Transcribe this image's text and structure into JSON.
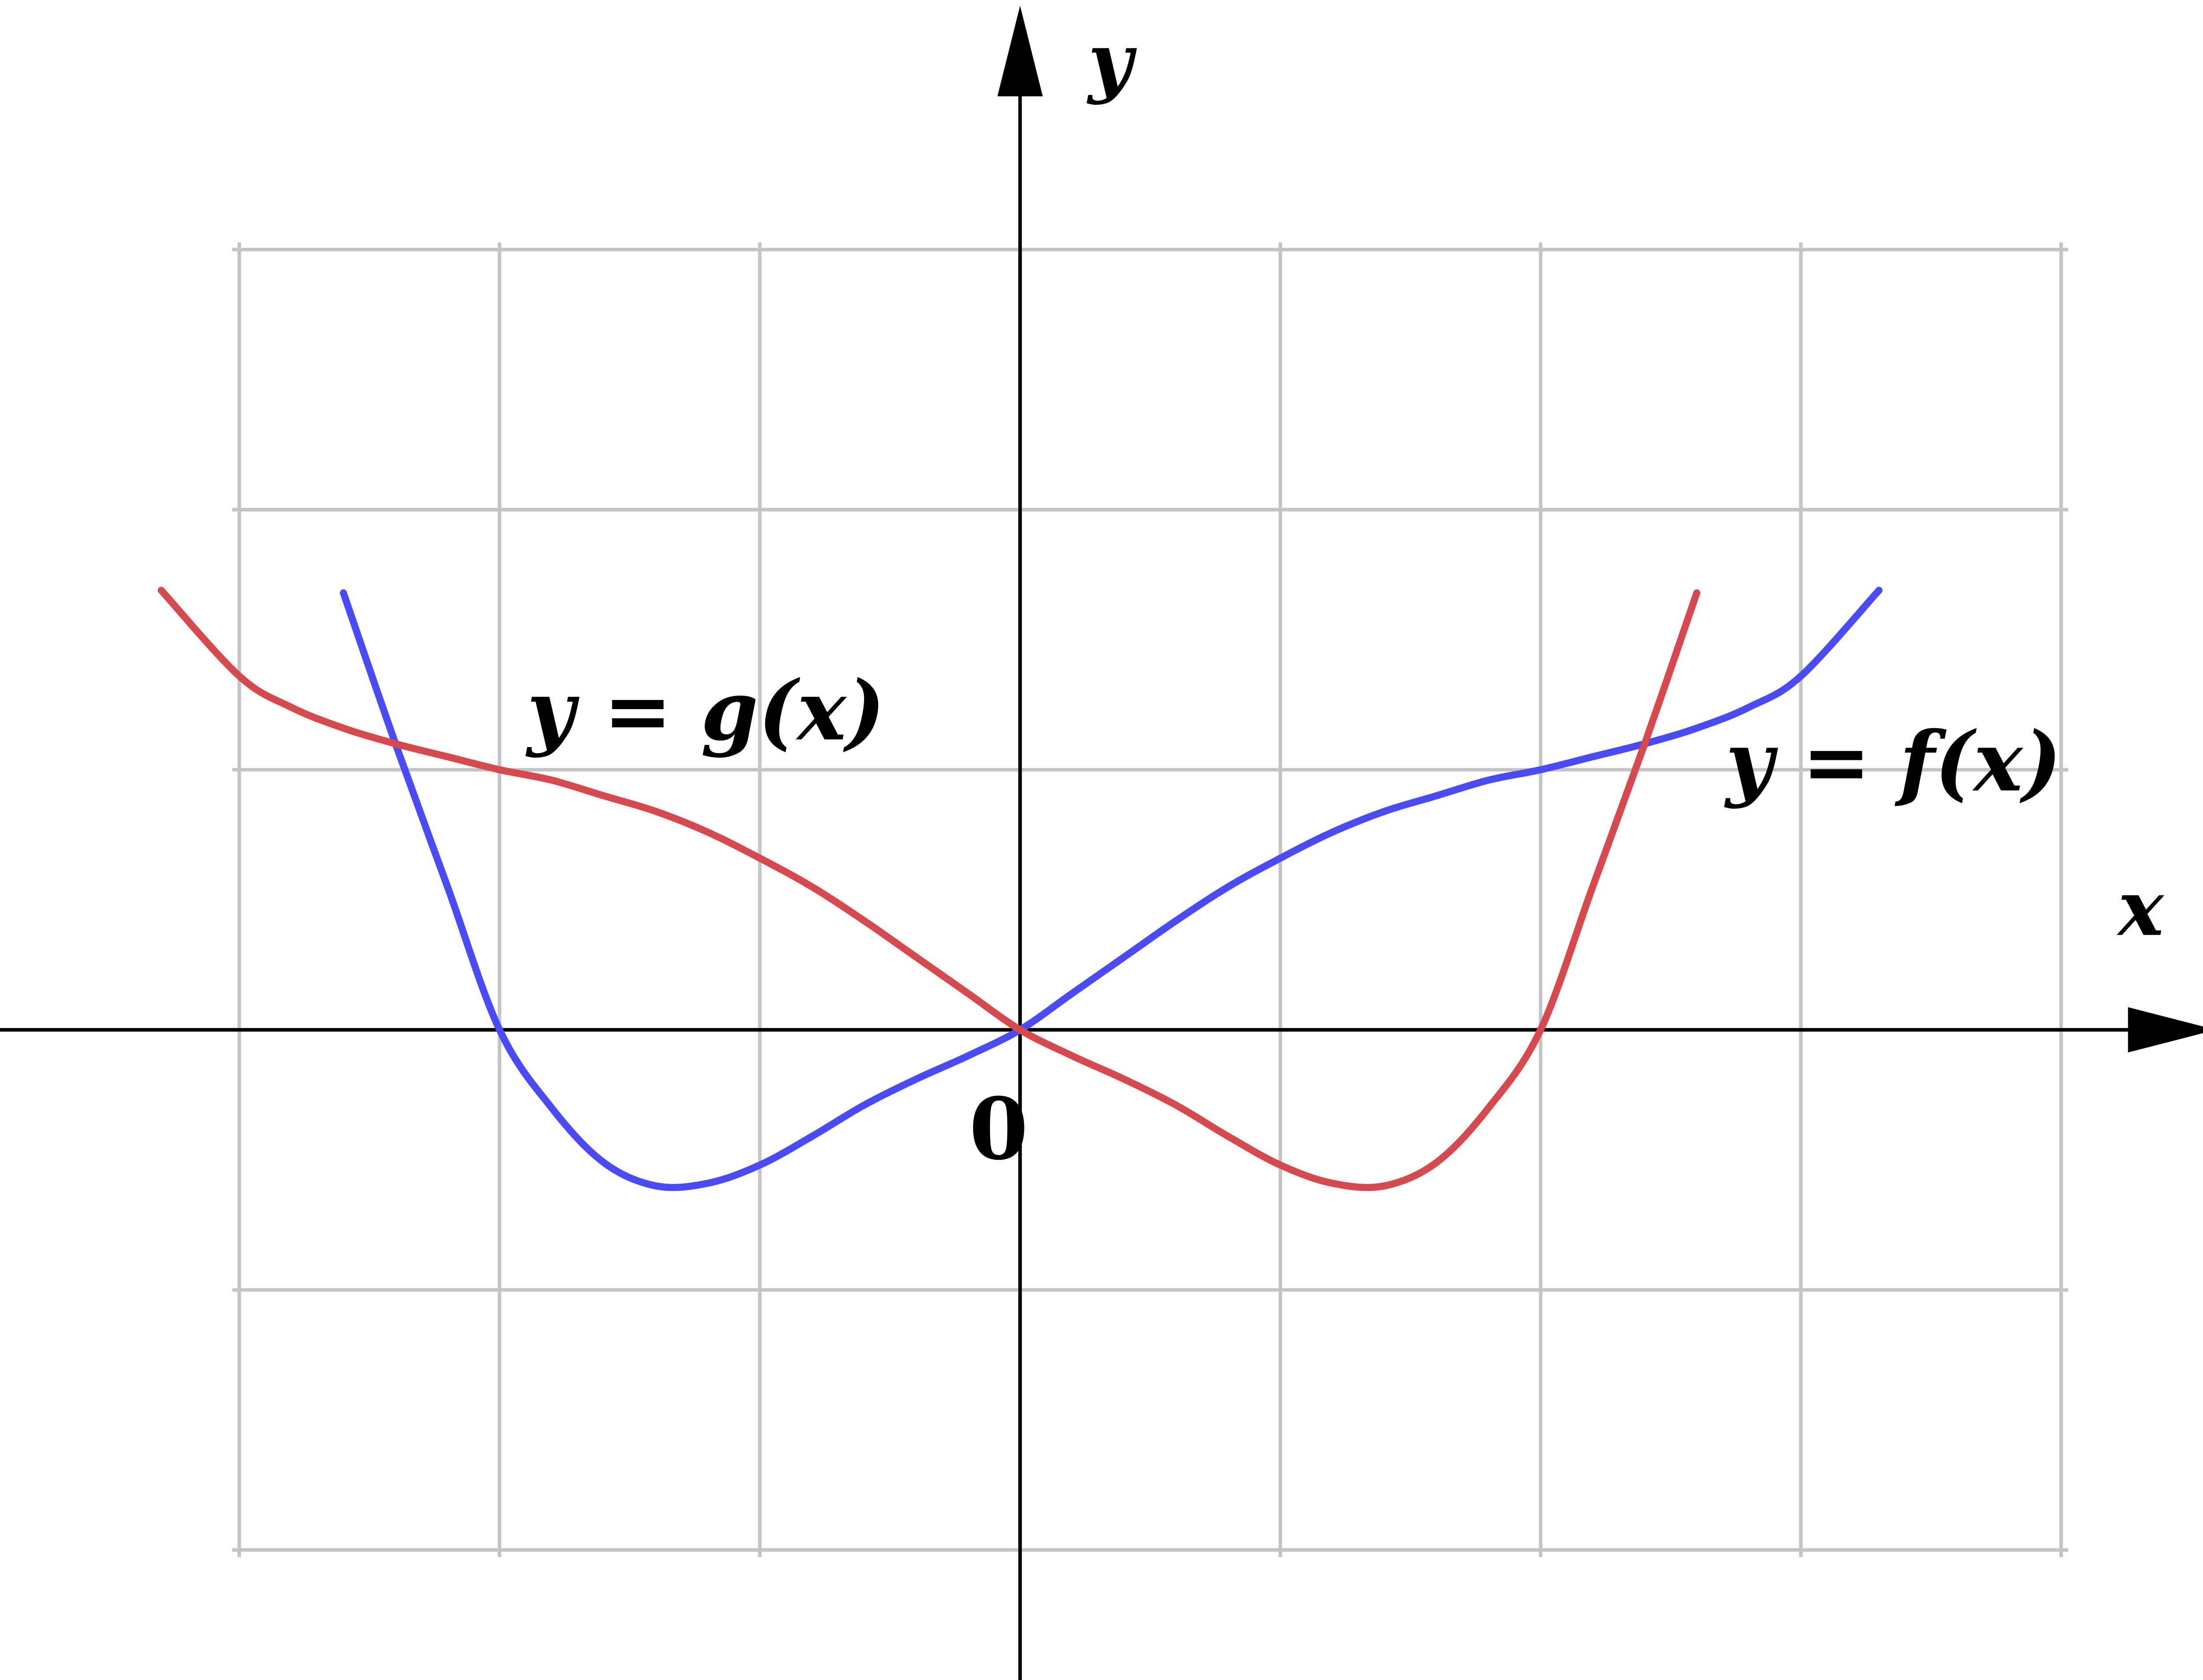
{
  "chart_data": {
    "type": "line",
    "title": "",
    "xlabel": "x",
    "ylabel": "y",
    "origin_label": "0",
    "xlim": [
      -3.0,
      4.0
    ],
    "ylim": [
      -2.0,
      3.0
    ],
    "grid": true,
    "grid_x_range": [
      -3,
      4
    ],
    "grid_y_range": [
      -2,
      3
    ],
    "grid_step": 1,
    "colors": {
      "axis": "#000000",
      "grid": "#c4c4c4",
      "f": "#4b4bf5",
      "g": "#d64a4f"
    },
    "series": [
      {
        "id": "f",
        "label": "y = f(x)",
        "color": "#4b4bf5",
        "x": [
          -2.6,
          -2.4,
          -2.2,
          -2.0,
          -1.8,
          -1.6,
          -1.4,
          -1.2,
          -1.0,
          -0.8,
          -0.6,
          -0.4,
          -0.2,
          0.0,
          0.2,
          0.4,
          0.6,
          0.8,
          1.0,
          1.2,
          1.4,
          1.6,
          1.8,
          2.0,
          2.2,
          2.4,
          2.6,
          2.8,
          3.0,
          3.3
        ],
        "y": [
          1.68,
          1.1,
          0.55,
          0.0,
          -0.3,
          -0.51,
          -0.6,
          -0.59,
          -0.52,
          -0.41,
          -0.29,
          -0.19,
          -0.1,
          0.0,
          0.14,
          0.28,
          0.42,
          0.55,
          0.66,
          0.76,
          0.84,
          0.9,
          0.96,
          1.0,
          1.05,
          1.1,
          1.16,
          1.24,
          1.36,
          1.69
        ]
      },
      {
        "id": "g",
        "label": "y = g(x)",
        "color": "#d64a4f",
        "x": [
          -3.3,
          -3.0,
          -2.8,
          -2.6,
          -2.4,
          -2.2,
          -2.0,
          -1.8,
          -1.6,
          -1.4,
          -1.2,
          -1.0,
          -0.8,
          -0.6,
          -0.4,
          -0.2,
          0.0,
          0.2,
          0.4,
          0.6,
          0.8,
          1.0,
          1.2,
          1.4,
          1.6,
          1.8,
          2.0,
          2.2,
          2.4,
          2.6
        ],
        "y": [
          1.69,
          1.36,
          1.24,
          1.16,
          1.1,
          1.05,
          1.0,
          0.96,
          0.9,
          0.84,
          0.76,
          0.66,
          0.55,
          0.42,
          0.28,
          0.14,
          0.0,
          -0.1,
          -0.19,
          -0.29,
          -0.41,
          -0.52,
          -0.59,
          -0.6,
          -0.51,
          -0.3,
          0.0,
          0.55,
          1.1,
          1.68
        ]
      }
    ]
  }
}
